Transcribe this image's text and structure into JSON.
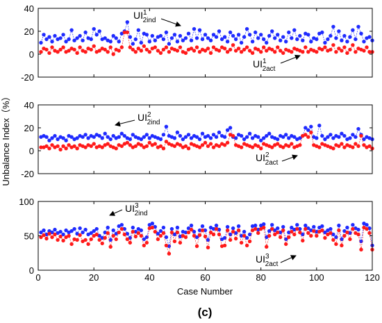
{
  "figure": {
    "panel_label": "(c)",
    "xlabel": "Case Number",
    "ylabel": "Unbalance Index（%）"
  },
  "colors": {
    "ind": "#1f2bff",
    "act": "#ff1a1a",
    "axis": "#000000"
  },
  "chart_data": [
    {
      "type": "line",
      "xlim": [
        0,
        120
      ],
      "ylim": [
        -20,
        40
      ],
      "yticks": [
        -20,
        0,
        20,
        40
      ],
      "xticks": [
        0,
        20,
        40,
        60,
        80,
        100,
        120
      ],
      "show_xticklabels": false,
      "grid": false,
      "annotations": [
        {
          "base": "UI",
          "sup": "1",
          "sub": "2ind",
          "arrow": "right"
        },
        {
          "base": "UI",
          "sup": "1",
          "sub": "2act",
          "arrow": "up-right"
        }
      ],
      "series": [
        {
          "key": "ind",
          "values": [
            10,
            17,
            13,
            15,
            11,
            16,
            13,
            14,
            17,
            11,
            13,
            21,
            12,
            14,
            16,
            12,
            19,
            14,
            13,
            22,
            17,
            20,
            13,
            14,
            12,
            11,
            16,
            14,
            11,
            18,
            20,
            28,
            15,
            9,
            13,
            21,
            10,
            18,
            17,
            11,
            16,
            12,
            15,
            16,
            13,
            19,
            9,
            14,
            17,
            11,
            16,
            12,
            14,
            18,
            12,
            22,
            14,
            21,
            13,
            17,
            14,
            12,
            17,
            15,
            20,
            13,
            15,
            11,
            19,
            16,
            13,
            17,
            10,
            15,
            22,
            17,
            11,
            19,
            14,
            17,
            13,
            10,
            16,
            20,
            14,
            17,
            12,
            15,
            11,
            19,
            14,
            21,
            13,
            16,
            12,
            18,
            17,
            11,
            14,
            13,
            18,
            19,
            10,
            13,
            16,
            24,
            14,
            20,
            12,
            16,
            11,
            15,
            21,
            13,
            24,
            18,
            11,
            14,
            15,
            12
          ]
        },
        {
          "key": "act",
          "values": [
            2,
            5,
            4,
            1,
            6,
            3,
            2,
            4,
            6,
            2,
            3,
            5,
            4,
            1,
            6,
            3,
            2,
            5,
            4,
            7,
            2,
            3,
            5,
            4,
            2,
            6,
            0,
            4,
            3,
            6,
            19,
            19,
            6,
            4,
            2,
            5,
            3,
            7,
            4,
            2,
            5,
            6,
            3,
            1,
            4,
            6,
            2,
            5,
            4,
            3,
            6,
            2,
            1,
            4,
            5,
            3,
            6,
            2,
            4,
            3,
            5,
            1,
            6,
            4,
            3,
            6,
            5,
            2,
            4,
            8,
            3,
            5,
            2,
            4,
            6,
            3,
            1,
            5,
            4,
            2,
            6,
            3,
            5,
            4,
            2,
            6,
            3,
            1,
            4,
            3,
            2,
            5,
            4,
            3,
            2,
            6,
            2,
            4,
            3,
            2,
            5,
            4,
            6,
            3,
            4,
            8,
            2,
            5,
            3,
            6,
            1,
            4,
            8,
            2,
            5,
            4,
            3,
            6,
            2,
            2
          ]
        }
      ]
    },
    {
      "type": "line",
      "xlim": [
        0,
        120
      ],
      "ylim": [
        -20,
        40
      ],
      "yticks": [
        -20,
        0,
        20,
        40
      ],
      "xticks": [
        0,
        20,
        40,
        60,
        80,
        100,
        120
      ],
      "show_xticklabels": false,
      "grid": false,
      "annotations": [
        {
          "base": "UI",
          "sup": "2",
          "sub": "2ind",
          "arrow": "left"
        },
        {
          "base": "UI",
          "sup": "2",
          "sub": "2act",
          "arrow": "up-right"
        }
      ],
      "series": [
        {
          "key": "ind",
          "values": [
            12,
            13,
            12,
            9,
            11,
            13,
            10,
            12,
            11,
            9,
            13,
            12,
            10,
            11,
            13,
            12,
            14,
            11,
            13,
            12,
            14,
            13,
            11,
            15,
            12,
            10,
            13,
            11,
            12,
            15,
            13,
            11,
            10,
            14,
            12,
            11,
            10,
            12,
            14,
            11,
            13,
            12,
            11,
            10,
            14,
            21,
            13,
            12,
            11,
            16,
            13,
            10,
            12,
            14,
            11,
            13,
            12,
            10,
            15,
            12,
            13,
            11,
            14,
            12,
            16,
            13,
            12,
            18,
            20,
            12,
            11,
            14,
            13,
            10,
            12,
            15,
            11,
            13,
            12,
            9,
            11,
            13,
            15,
            12,
            11,
            10,
            13,
            12,
            14,
            11,
            13,
            12,
            10,
            11,
            13,
            20,
            18,
            21,
            12,
            11,
            22,
            13,
            10,
            12,
            14,
            11,
            13,
            12,
            15,
            13,
            10,
            11,
            14,
            12,
            19,
            14,
            10,
            12,
            11,
            10
          ]
        },
        {
          "key": "act",
          "values": [
            3,
            3,
            4,
            2,
            5,
            3,
            4,
            1,
            4,
            2,
            5,
            3,
            4,
            2,
            5,
            4,
            3,
            5,
            4,
            6,
            3,
            4,
            3,
            5,
            6,
            4,
            3,
            2,
            5,
            4,
            6,
            7,
            5,
            3,
            4,
            6,
            5,
            3,
            4,
            7,
            5,
            6,
            3,
            4,
            2,
            8,
            6,
            5,
            4,
            6,
            5,
            3,
            4,
            2,
            6,
            5,
            4,
            3,
            5,
            7,
            4,
            6,
            3,
            5,
            4,
            6,
            5,
            7,
            14,
            13,
            5,
            4,
            3,
            6,
            5,
            4,
            3,
            5,
            4,
            2,
            6,
            5,
            4,
            3,
            5,
            6,
            4,
            3,
            5,
            4,
            6,
            3,
            4,
            5,
            13,
            14,
            12,
            16,
            5,
            4,
            3,
            6,
            5,
            4,
            3,
            2,
            5,
            4,
            6,
            3,
            5,
            4,
            3,
            6,
            4,
            13,
            5,
            3,
            4,
            2
          ]
        }
      ]
    },
    {
      "type": "line",
      "xlim": [
        0,
        120
      ],
      "ylim": [
        0,
        100
      ],
      "yticks": [
        0,
        50,
        100
      ],
      "xticks": [
        0,
        20,
        40,
        60,
        80,
        100,
        120
      ],
      "show_xticklabels": true,
      "grid": false,
      "annotations": [
        {
          "base": "UI",
          "sup": "3",
          "sub": "2ind",
          "arrow": "left"
        },
        {
          "base": "UI",
          "sup": "3",
          "sub": "2act",
          "arrow": "up-right"
        }
      ],
      "series": [
        {
          "key": "ind",
          "values": [
            55,
            58,
            52,
            57,
            55,
            59,
            54,
            56,
            52,
            58,
            55,
            57,
            60,
            53,
            61,
            55,
            59,
            52,
            54,
            57,
            60,
            50,
            47,
            55,
            62,
            44,
            58,
            53,
            64,
            66,
            60,
            53,
            47,
            62,
            56,
            60,
            58,
            45,
            48,
            66,
            68,
            63,
            53,
            57,
            62,
            48,
            35,
            60,
            52,
            62,
            49,
            56,
            55,
            61,
            65,
            56,
            48,
            58,
            64,
            58,
            44,
            62,
            60,
            65,
            59,
            45,
            47,
            63,
            52,
            61,
            54,
            64,
            50,
            56,
            47,
            52,
            64,
            65,
            59,
            65,
            67,
            48,
            57,
            66,
            58,
            61,
            55,
            63,
            45,
            55,
            62,
            59,
            66,
            60,
            52,
            65,
            61,
            58,
            63,
            56,
            62,
            64,
            55,
            58,
            60,
            52,
            48,
            65,
            45,
            57,
            62,
            54,
            66,
            61,
            59,
            42,
            68,
            66,
            61,
            36
          ]
        },
        {
          "key": "act",
          "values": [
            48,
            51,
            46,
            53,
            48,
            52,
            44,
            49,
            43,
            48,
            50,
            38,
            45,
            44,
            51,
            42,
            44,
            38,
            45,
            50,
            52,
            44,
            39,
            47,
            54,
            34,
            50,
            45,
            55,
            60,
            52,
            45,
            40,
            56,
            49,
            54,
            50,
            36,
            40,
            61,
            62,
            56,
            45,
            50,
            54,
            36,
            24,
            55,
            42,
            55,
            40,
            50,
            48,
            55,
            59,
            50,
            35,
            51,
            58,
            49,
            33,
            55,
            52,
            60,
            52,
            35,
            36,
            58,
            44,
            56,
            46,
            58,
            40,
            50,
            36,
            42,
            58,
            60,
            54,
            60,
            62,
            34,
            50,
            60,
            52,
            55,
            48,
            58,
            38,
            48,
            56,
            52,
            60,
            55,
            43,
            60,
            54,
            50,
            57,
            50,
            56,
            58,
            47,
            52,
            54,
            44,
            38,
            58,
            36,
            50,
            55,
            45,
            60,
            54,
            52,
            30,
            62,
            60,
            54,
            30
          ]
        }
      ]
    }
  ]
}
